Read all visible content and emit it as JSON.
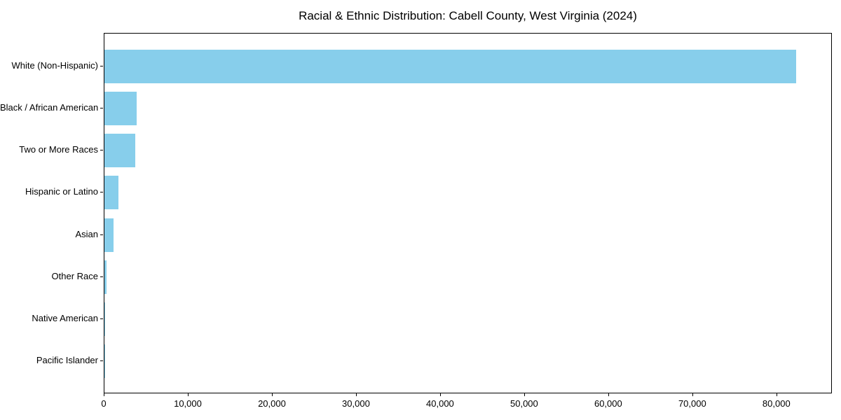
{
  "chart_data": {
    "type": "bar",
    "orientation": "horizontal",
    "title": "Racial & Ethnic Distribution: Cabell County, West Virginia (2024)",
    "categories": [
      "White (Non-Hispanic)",
      "Black / African American",
      "Two or More Races",
      "Hispanic or Latino",
      "Asian",
      "Other Race",
      "Native American",
      "Pacific Islander"
    ],
    "values": [
      82300,
      3850,
      3650,
      1650,
      1050,
      290,
      100,
      30
    ],
    "bar_color": "#87CEEB",
    "xlabel": "",
    "ylabel": "",
    "xlim": [
      0,
      86600
    ],
    "x_ticks": [
      0,
      10000,
      20000,
      30000,
      40000,
      50000,
      60000,
      70000,
      80000
    ],
    "x_tick_labels": [
      "0",
      "10,000",
      "20,000",
      "30,000",
      "40,000",
      "50,000",
      "60,000",
      "70,000",
      "80,000"
    ],
    "grid": false,
    "legend": "none",
    "frame_color": "#000000",
    "text_color": "#000000"
  }
}
